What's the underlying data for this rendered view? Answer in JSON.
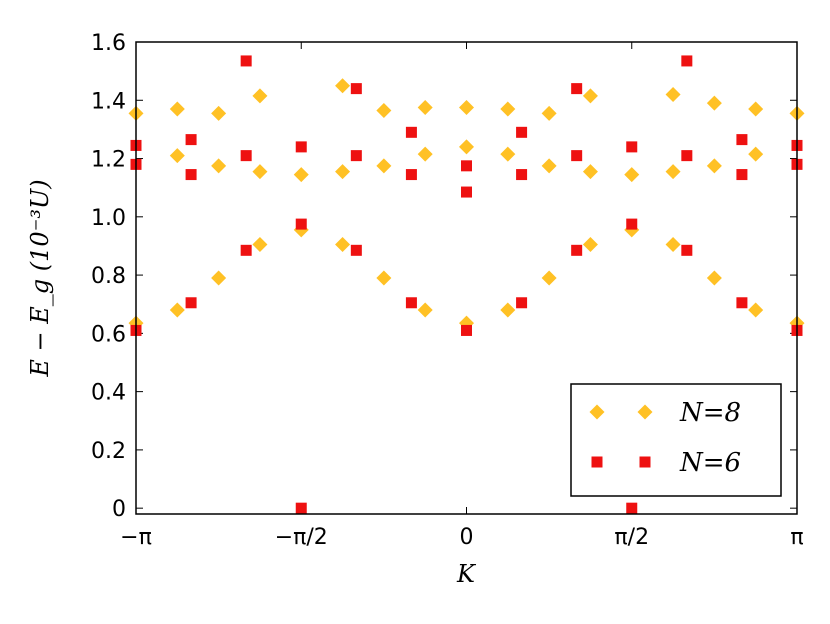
{
  "chart_data": {
    "type": "scatter",
    "xlabel": "K",
    "ylabel": "E − E_g (10⁻³U)",
    "xlim": [
      -3.14159265,
      3.14159265
    ],
    "ylim": [
      -0.02,
      1.6
    ],
    "xticks": [
      {
        "value": -3.14159265,
        "label": "−π"
      },
      {
        "value": -1.57079633,
        "label": "−π/2"
      },
      {
        "value": 0,
        "label": "0"
      },
      {
        "value": 1.57079633,
        "label": "π/2"
      },
      {
        "value": 3.14159265,
        "label": "π"
      }
    ],
    "yticks": [
      {
        "value": 0,
        "label": "0"
      },
      {
        "value": 0.2,
        "label": "0.2"
      },
      {
        "value": 0.4,
        "label": "0.4"
      },
      {
        "value": 0.6,
        "label": "0.6"
      },
      {
        "value": 0.8,
        "label": "0.8"
      },
      {
        "value": 1.0,
        "label": "1.0"
      },
      {
        "value": 1.2,
        "label": "1.2"
      },
      {
        "value": 1.4,
        "label": "1.4"
      },
      {
        "value": 1.6,
        "label": "1.6"
      }
    ],
    "legend_position": "bottom-right",
    "series": [
      {
        "name": "N=8",
        "marker": "diamond",
        "color": "#FFC125",
        "points": [
          [
            -3.1416,
            1.355
          ],
          [
            -3.1416,
            0.635
          ],
          [
            -2.7489,
            1.37
          ],
          [
            -2.7489,
            1.21
          ],
          [
            -2.7489,
            0.68
          ],
          [
            -2.3562,
            1.355
          ],
          [
            -2.3562,
            1.175
          ],
          [
            -2.3562,
            0.79
          ],
          [
            -1.9635,
            1.415
          ],
          [
            -1.9635,
            1.155
          ],
          [
            -1.9635,
            0.905
          ],
          [
            -1.5708,
            1.145
          ],
          [
            -1.5708,
            0.955
          ],
          [
            -1.1781,
            1.45
          ],
          [
            -1.1781,
            1.155
          ],
          [
            -1.1781,
            0.905
          ],
          [
            -0.7854,
            1.365
          ],
          [
            -0.7854,
            1.175
          ],
          [
            -0.7854,
            0.79
          ],
          [
            -0.3927,
            1.375
          ],
          [
            -0.3927,
            1.215
          ],
          [
            -0.3927,
            0.68
          ],
          [
            0,
            1.375
          ],
          [
            0,
            1.24
          ],
          [
            0,
            0.635
          ],
          [
            0.3927,
            1.37
          ],
          [
            0.3927,
            1.215
          ],
          [
            0.3927,
            0.68
          ],
          [
            0.7854,
            1.355
          ],
          [
            0.7854,
            1.175
          ],
          [
            0.7854,
            0.79
          ],
          [
            1.1781,
            1.415
          ],
          [
            1.1781,
            1.155
          ],
          [
            1.1781,
            0.905
          ],
          [
            1.5708,
            1.145
          ],
          [
            1.5708,
            0.955
          ],
          [
            1.9635,
            1.42
          ],
          [
            1.9635,
            1.155
          ],
          [
            1.9635,
            0.905
          ],
          [
            2.3562,
            1.39
          ],
          [
            2.3562,
            1.175
          ],
          [
            2.3562,
            0.79
          ],
          [
            2.7489,
            1.37
          ],
          [
            2.7489,
            1.215
          ],
          [
            2.7489,
            0.68
          ],
          [
            3.1416,
            1.355
          ],
          [
            3.1416,
            0.635
          ]
        ]
      },
      {
        "name": "N=6",
        "marker": "square",
        "color": "#EE1111",
        "points": [
          [
            -3.1416,
            1.245
          ],
          [
            -3.1416,
            1.18
          ],
          [
            -3.1416,
            0.61
          ],
          [
            -2.618,
            1.265
          ],
          [
            -2.618,
            1.145
          ],
          [
            -2.618,
            0.705
          ],
          [
            -2.0944,
            1.535
          ],
          [
            -2.0944,
            1.21
          ],
          [
            -2.0944,
            0.885
          ],
          [
            -1.5708,
            1.24
          ],
          [
            -1.5708,
            0.975
          ],
          [
            -1.5708,
            0.0
          ],
          [
            -1.0472,
            1.44
          ],
          [
            -1.0472,
            1.21
          ],
          [
            -1.0472,
            0.885
          ],
          [
            -0.5236,
            1.29
          ],
          [
            -0.5236,
            1.145
          ],
          [
            -0.5236,
            0.705
          ],
          [
            0,
            1.175
          ],
          [
            0,
            1.085
          ],
          [
            0,
            0.61
          ],
          [
            0.5236,
            1.29
          ],
          [
            0.5236,
            1.145
          ],
          [
            0.5236,
            0.705
          ],
          [
            1.0472,
            1.44
          ],
          [
            1.0472,
            1.21
          ],
          [
            1.0472,
            0.885
          ],
          [
            1.5708,
            1.24
          ],
          [
            1.5708,
            0.975
          ],
          [
            1.5708,
            0.0
          ],
          [
            2.0944,
            1.535
          ],
          [
            2.0944,
            1.21
          ],
          [
            2.0944,
            0.885
          ],
          [
            2.618,
            1.265
          ],
          [
            2.618,
            1.145
          ],
          [
            2.618,
            0.705
          ],
          [
            3.1416,
            1.245
          ],
          [
            3.1416,
            1.18
          ],
          [
            3.1416,
            0.61
          ]
        ]
      }
    ]
  }
}
